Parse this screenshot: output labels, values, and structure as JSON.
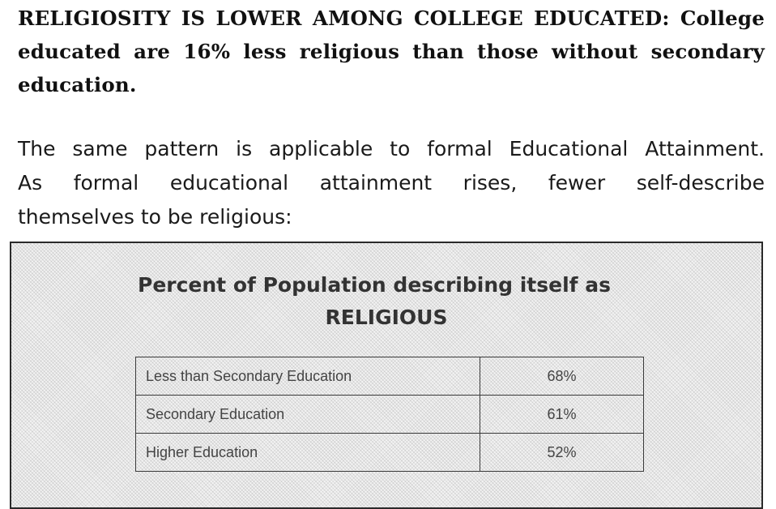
{
  "heading": {
    "lines": [
      "RELIGIOSITY IS LOWER AMONG COLLEGE EDUCATED: College",
      "educated are 16% less religious than those without secondary",
      "education."
    ]
  },
  "intro": {
    "lines": [
      "The same pattern is applicable to formal Educational Attainment.",
      "As formal educational attainment rises, fewer self-describe",
      "themselves to be religious:"
    ]
  },
  "panel": {
    "title_line1": "Percent of Population describing itself as",
    "title_line2": "RELIGIOUS",
    "rows": [
      {
        "label": "Less than Secondary Education",
        "value": "68%"
      },
      {
        "label": "Secondary Education",
        "value": "61%"
      },
      {
        "label": "Higher Education",
        "value": "52%"
      }
    ]
  }
}
